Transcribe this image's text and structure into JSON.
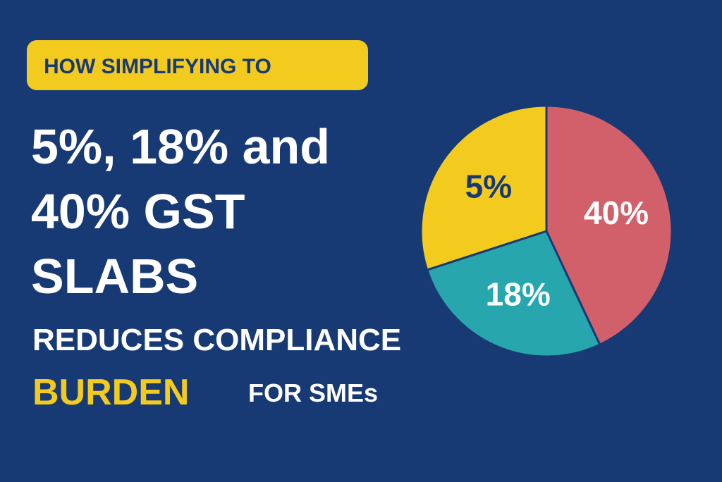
{
  "badge": "HOW SIMPLIFYING TO",
  "headline": [
    "5%, 18% and",
    "40% GST",
    "SLABS"
  ],
  "subline": "REDUCES COMPLIANCE",
  "highlight": "BURDEN",
  "tail": "FOR SMEs",
  "pie": {
    "slices": [
      {
        "label": "40%",
        "share": 43,
        "color": "#d2606b",
        "label_color": "#ffffff"
      },
      {
        "label": "18%",
        "share": 27,
        "color": "#27a6ae",
        "label_color": "#ffffff"
      },
      {
        "label": "5%",
        "share": 30,
        "color": "#f3cb1f",
        "label_color": "#183a74"
      }
    ]
  }
}
